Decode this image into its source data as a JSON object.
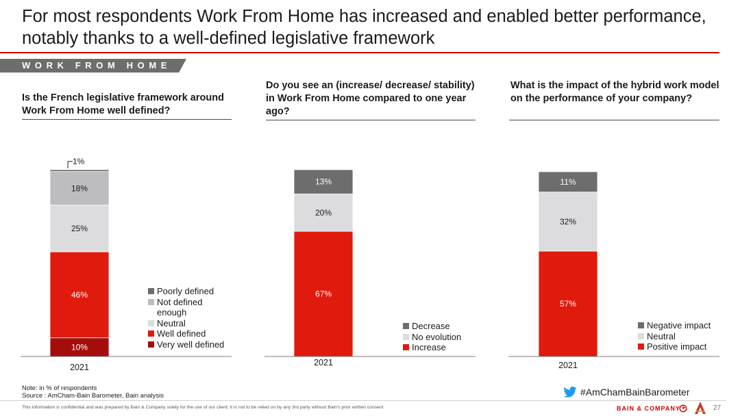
{
  "title": "For most respondents Work From Home has increased and enabled better performance, notably thanks to a well-defined legislative framework",
  "section_label": "WORK FROM HOME",
  "questions": [
    "Is the French legislative framework around Work From Home well defined?",
    "Do you see an (increase/ decrease/ stability) in Work From Home compared to one year ago?",
    "What is the impact of the hybrid work model on the performance of your company?"
  ],
  "chart_data": [
    {
      "type": "bar",
      "stacked": true,
      "categories": [
        "2021"
      ],
      "series": [
        {
          "name": "Very well defined",
          "values": [
            10
          ],
          "label": "10%",
          "color": "#a50d0d"
        },
        {
          "name": "Well defined",
          "values": [
            46
          ],
          "label": "46%",
          "color": "#e01a0d"
        },
        {
          "name": "Neutral",
          "values": [
            25
          ],
          "label": "25%",
          "color": "#dcdcde"
        },
        {
          "name": "Not defined enough",
          "values": [
            18
          ],
          "label": "18%",
          "color": "#bdbdbf"
        },
        {
          "name": "Poorly defined",
          "values": [
            1
          ],
          "label": "1%",
          "color": "#6d6d6d"
        }
      ],
      "legend": [
        "Poorly defined",
        "Not defined enough",
        "Neutral",
        "Well defined",
        "Very well defined"
      ],
      "legend_colors": [
        "#6d6d6d",
        "#bdbdbf",
        "#dcdcde",
        "#e01a0d",
        "#a50d0d"
      ],
      "ylim": [
        0,
        100
      ]
    },
    {
      "type": "bar",
      "stacked": true,
      "categories": [
        "2021"
      ],
      "series": [
        {
          "name": "Increase",
          "values": [
            67
          ],
          "label": "67%",
          "color": "#e01a0d"
        },
        {
          "name": "No evolution",
          "values": [
            20
          ],
          "label": "20%",
          "color": "#dcdcde"
        },
        {
          "name": "Decrease",
          "values": [
            13
          ],
          "label": "13%",
          "color": "#6d6d6d"
        }
      ],
      "legend": [
        "Decrease",
        "No evolution",
        "Increase"
      ],
      "legend_colors": [
        "#6d6d6d",
        "#dcdcde",
        "#e01a0d"
      ],
      "ylim": [
        0,
        100
      ]
    },
    {
      "type": "bar",
      "stacked": true,
      "categories": [
        "2021"
      ],
      "series": [
        {
          "name": "Positive impact",
          "values": [
            57
          ],
          "label": "57%",
          "color": "#e01a0d"
        },
        {
          "name": "Neutral",
          "values": [
            32
          ],
          "label": "32%",
          "color": "#dcdcde"
        },
        {
          "name": "Negative impact",
          "values": [
            11
          ],
          "label": "11%",
          "color": "#6d6d6d"
        }
      ],
      "legend": [
        "Negative impact",
        "Neutral",
        "Positive impact"
      ],
      "legend_colors": [
        "#6d6d6d",
        "#dcdcde",
        "#e01a0d"
      ],
      "ylim": [
        0,
        100
      ]
    }
  ],
  "note": "Note: in % of respondents",
  "source": "Source : AmCham-Bain Barometer, Bain analysis",
  "hashtag": "#AmChamBainBarometer",
  "confidential": "This information is confidential and was prepared by Bain & Company solely for the use of our client; it is not to be relied on by any 3rd party without Bain's prior written consent",
  "brand": "BAIN & COMPANY",
  "page_number": "27"
}
